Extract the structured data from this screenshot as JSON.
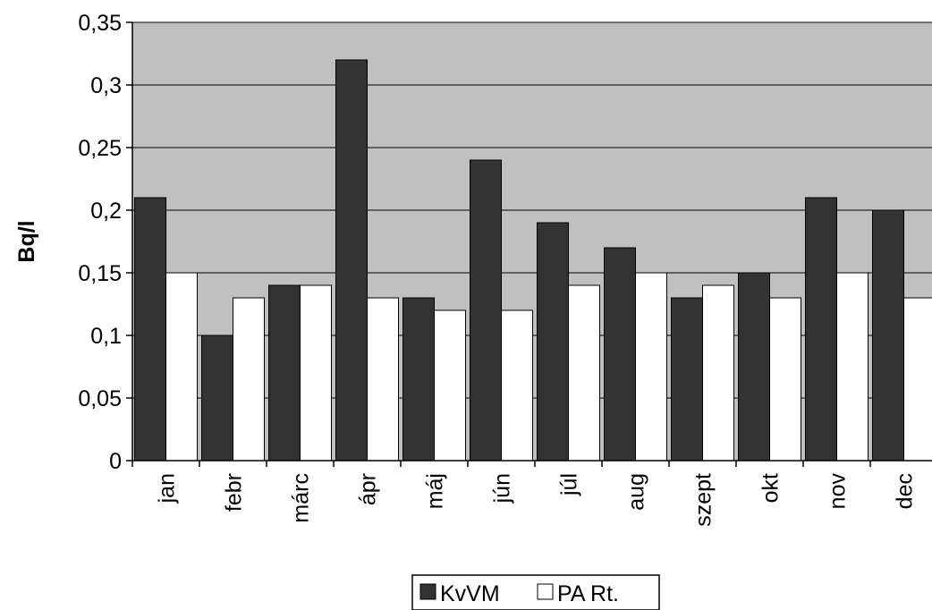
{
  "chart_data": {
    "type": "bar",
    "title": "",
    "xlabel": "",
    "ylabel": "Bq/l",
    "ylim": [
      0,
      0.35
    ],
    "ytick_step": 0.05,
    "ytick_labels": [
      "0",
      "0,05",
      "0,1",
      "0,15",
      "0,2",
      "0,25",
      "0,3",
      "0,35"
    ],
    "categories": [
      "jan",
      "febr",
      "márc",
      "ápr",
      "máj",
      "jún",
      "júl",
      "aug",
      "szept",
      "okt",
      "nov",
      "dec"
    ],
    "series": [
      {
        "name": "KvVM",
        "color": "#333333",
        "values": [
          0.21,
          0.1,
          0.14,
          0.32,
          0.13,
          0.24,
          0.19,
          0.17,
          0.13,
          0.15,
          0.21,
          0.2
        ]
      },
      {
        "name": "PA Rt.",
        "color": "#ffffff",
        "values": [
          0.15,
          0.13,
          0.14,
          0.13,
          0.12,
          0.12,
          0.14,
          0.15,
          0.14,
          0.13,
          0.15,
          0.13
        ]
      }
    ],
    "grid": true,
    "plot_background": "#c0c0c0",
    "legend_position": "bottom"
  }
}
